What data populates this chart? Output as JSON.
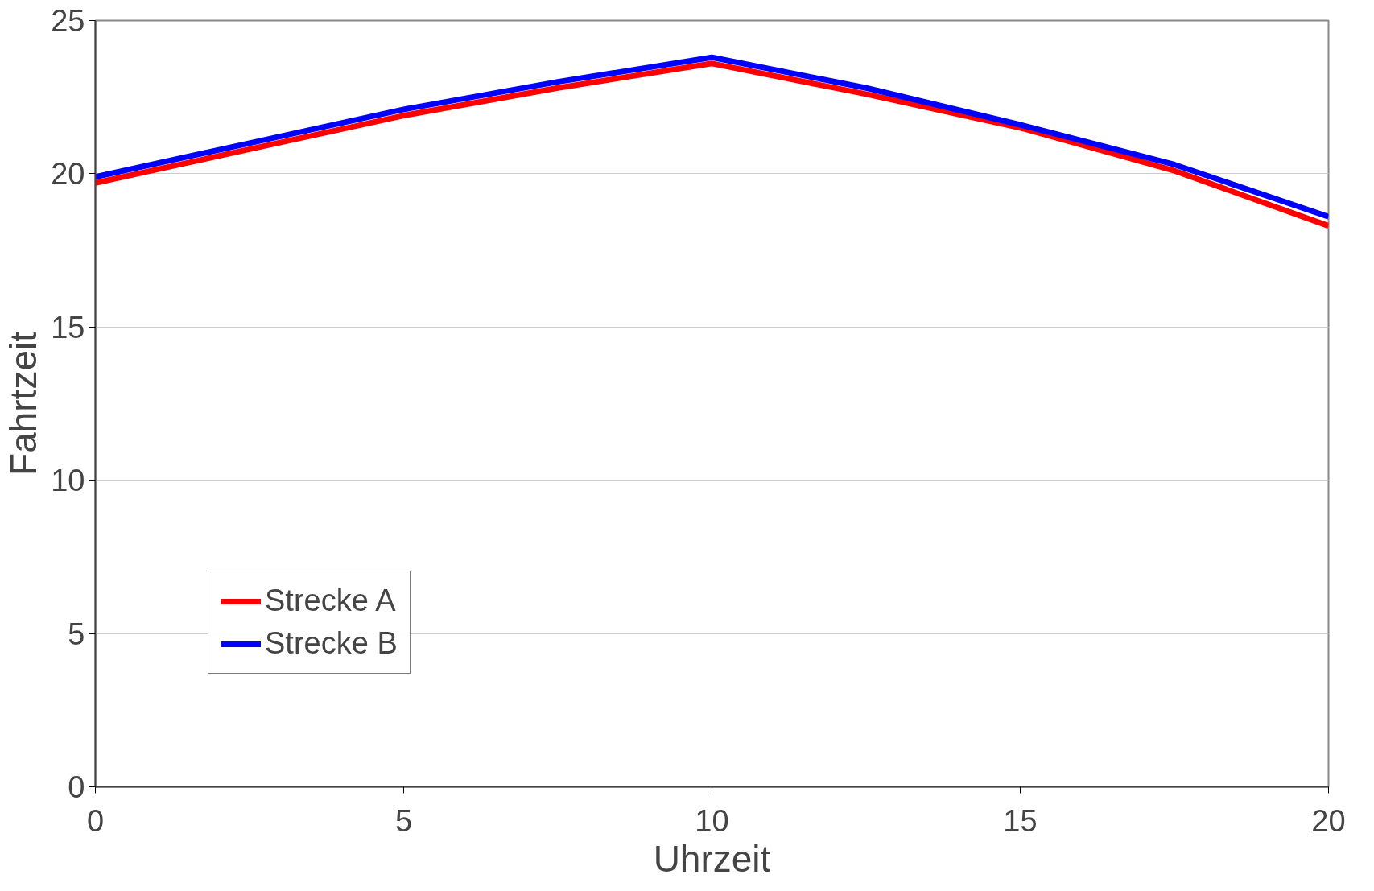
{
  "chart_data": {
    "type": "line",
    "xlabel": "Uhrzeit",
    "ylabel": "Fahrtzeit",
    "x": [
      0,
      2.5,
      5,
      7.5,
      10,
      12.5,
      15,
      17.5,
      20
    ],
    "series": [
      {
        "name": "Strecke A",
        "color": "#ff0000",
        "values": [
          19.7,
          20.8,
          21.9,
          22.8,
          23.6,
          22.6,
          21.5,
          20.1,
          18.3
        ]
      },
      {
        "name": "Strecke B",
        "color": "#0000ff",
        "values": [
          19.9,
          21.0,
          22.1,
          23.0,
          23.8,
          22.8,
          21.6,
          20.3,
          18.6
        ]
      }
    ],
    "xlim": [
      0,
      20
    ],
    "ylim": [
      0,
      25
    ],
    "xticks": [
      0,
      5,
      10,
      15,
      20
    ],
    "yticks": [
      0,
      5,
      10,
      15,
      20,
      25
    ],
    "grid": "y",
    "legend": "bottom left",
    "marker": "none",
    "line_style": "solid"
  }
}
